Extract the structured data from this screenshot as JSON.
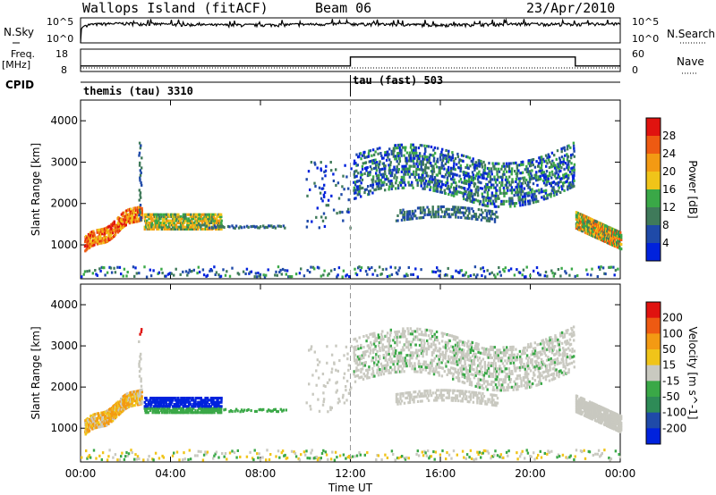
{
  "header": {
    "station": "Wallops Island (fitACF)",
    "beam": "Beam 06",
    "date": "23/Apr/2010"
  },
  "left_labels": {
    "nsky": "N.Sky",
    "freq": "Freq.",
    "freq_unit": "[MHz]",
    "cpid": "CPID"
  },
  "right_labels": {
    "nsearch": "N.Search",
    "nave": "Nave"
  },
  "cpid_segments": [
    {
      "label": "themis (tau) 3310",
      "start_hour": 0
    },
    {
      "label": "tau (fast) 503",
      "start_hour": 12
    }
  ],
  "noise_panel": {
    "ytick_labels_left": [
      "10^5",
      "10^0"
    ],
    "ytick_labels_right": [
      "10^5",
      "10^0"
    ]
  },
  "freq_panel": {
    "ytick_labels_left": [
      "18",
      "8"
    ],
    "ytick_labels_right": [
      "60",
      "0"
    ]
  },
  "colors": {
    "power_scale": [
      "#0022dd",
      "#1f4aa8",
      "#3f7a5a",
      "#3aa847",
      "#f0c419",
      "#f39a13",
      "#ee5a12",
      "#e0130f"
    ],
    "velocity_scale": [
      "#e0130f",
      "#ee5a12",
      "#f39a13",
      "#f0c419",
      "#c9c9c0",
      "#3aa847",
      "#2e8b57",
      "#1f4aa8",
      "#0022dd"
    ],
    "line": "#000000"
  },
  "chart_data": [
    {
      "type": "line",
      "title": "Wallops Island (fitACF)",
      "series": [
        {
          "name": "N.Sky",
          "x": [
            0,
            0.2,
            1,
            2,
            3,
            4,
            6,
            8,
            10,
            12,
            14,
            16,
            18,
            20,
            22,
            23,
            24
          ],
          "values": [
            1,
            3000.0,
            5000.0,
            6000.0,
            5000.0,
            4000.0,
            3000.0,
            3000.0,
            4000.0,
            5000.0,
            4000.0,
            3000.0,
            4000.0,
            5000.0,
            4000.0,
            5000.0,
            5000.0
          ]
        },
        {
          "name": "Freq.",
          "x": [
            0,
            12,
            12,
            22,
            22,
            24
          ],
          "values": [
            10.5,
            10.5,
            14.5,
            14.5,
            10.5,
            10.5
          ]
        }
      ],
      "x_range": [
        0,
        24
      ]
    },
    {
      "type": "heatmap",
      "title": "Beam 06",
      "xlabel": "Time UT",
      "ylabel": "Slant Range [km]",
      "colorbar_label": "Power [dB]",
      "colorbar_ticks": [
        "4",
        "8",
        "12",
        "16",
        "20",
        "24",
        "28"
      ],
      "x_ticks": [
        "00:00",
        "04:00",
        "08:00",
        "12:00",
        "16:00",
        "20:00",
        "00:00"
      ],
      "y_ticks": [
        "1000",
        "2000",
        "3000",
        "4000"
      ],
      "ylim": [
        180,
        4500
      ],
      "clim": [
        0,
        32
      ]
    },
    {
      "type": "heatmap",
      "title": "23/Apr/2010",
      "xlabel": "Time UT",
      "ylabel": "Slant Range [km]",
      "colorbar_label": "Velocity [m s^-1]",
      "colorbar_ticks": [
        "200",
        "100",
        "50",
        "15",
        "-15",
        "-50",
        "-100",
        "-200"
      ],
      "x_ticks": [
        "00:00",
        "04:00",
        "08:00",
        "12:00",
        "16:00",
        "20:00",
        "00:00"
      ],
      "y_ticks": [
        "1000",
        "2000",
        "3000",
        "4000"
      ],
      "ylim": [
        180,
        4500
      ],
      "clim": [
        -250,
        250
      ]
    }
  ]
}
